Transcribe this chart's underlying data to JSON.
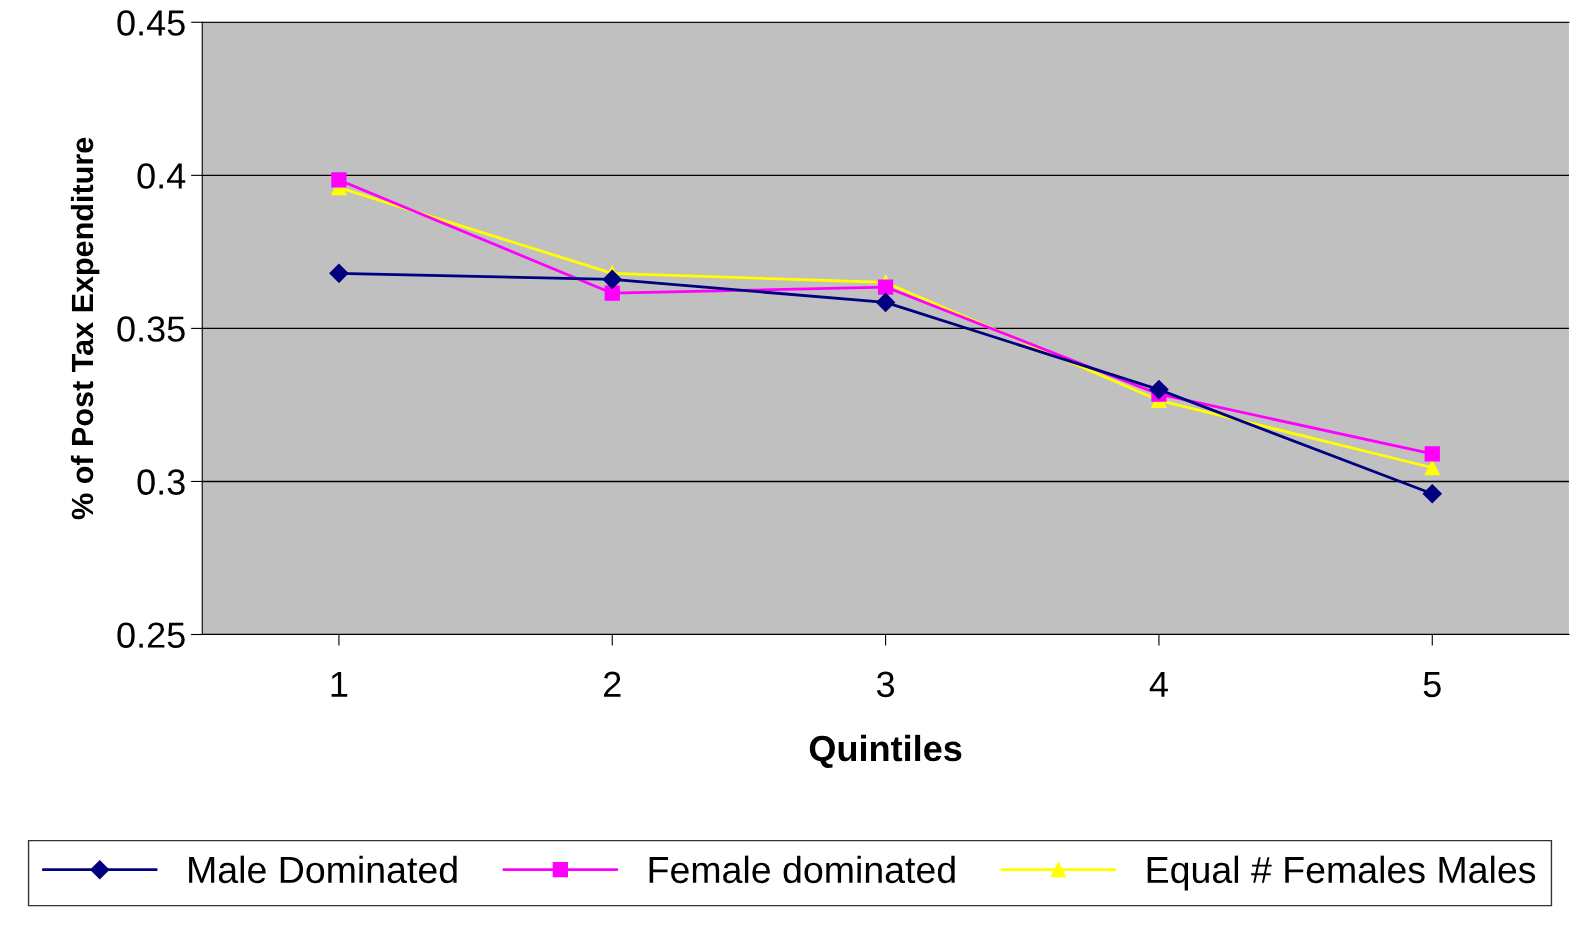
{
  "chart_data": {
    "type": "line",
    "xlabel": "Quintiles",
    "ylabel": "% of Post Tax Expenditure",
    "categories": [
      "1",
      "2",
      "3",
      "4",
      "5"
    ],
    "series": [
      {
        "name": "Male Dominated",
        "color": "#000080",
        "marker": "diamond",
        "values": [
          0.368,
          0.366,
          0.3585,
          0.33,
          0.296
        ]
      },
      {
        "name": "Female dominated",
        "color": "#ff00ff",
        "marker": "square",
        "values": [
          0.3985,
          0.3615,
          0.3635,
          0.3285,
          0.309
        ]
      },
      {
        "name": "Equal # Females Males",
        "color": "#ffff00",
        "marker": "triangle",
        "values": [
          0.396,
          0.368,
          0.365,
          0.3265,
          0.3045
        ]
      }
    ],
    "ylim": [
      0.25,
      0.45
    ],
    "yticks": [
      0.25,
      0.3,
      0.35,
      0.4,
      0.45
    ],
    "grid": "y",
    "legend": "bottom",
    "line_style": "solid"
  }
}
